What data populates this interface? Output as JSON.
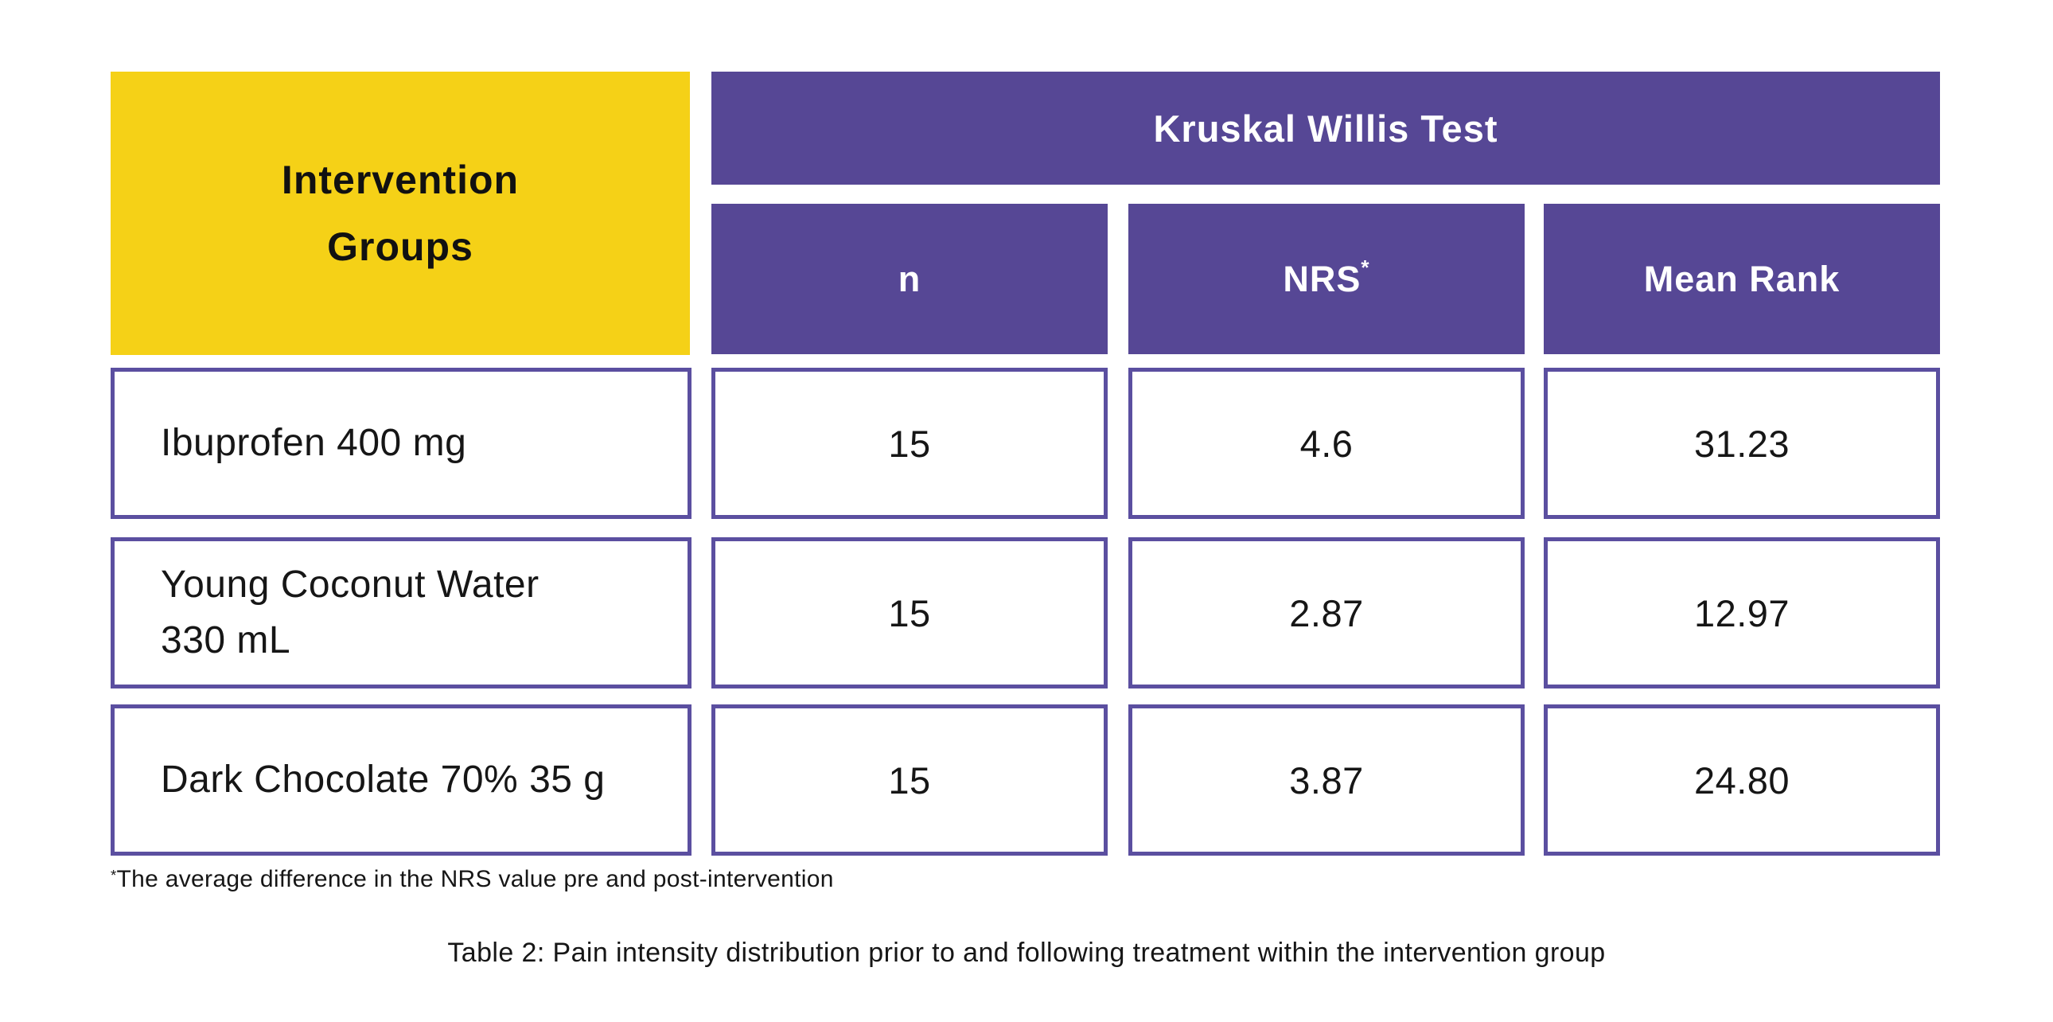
{
  "table": {
    "corner_header": {
      "line1": "Intervention",
      "line2": "Groups"
    },
    "main_header": "Kruskal Willis Test",
    "sub_headers": {
      "n": "n",
      "nrs": "NRS",
      "nrs_sup": "*",
      "mean_rank": "Mean Rank"
    },
    "rows": [
      {
        "lines": [
          "Ibuprofen 400 mg"
        ],
        "n": "15",
        "nrs": "4.6",
        "mean_rank": "31.23"
      },
      {
        "lines": [
          "Young Coconut Water",
          "330 mL"
        ],
        "n": "15",
        "nrs": "2.87",
        "mean_rank": "12.97"
      },
      {
        "lines": [
          "Dark Chocolate 70% 35 g"
        ],
        "n": "15",
        "nrs": "3.87",
        "mean_rank": "24.80"
      }
    ]
  },
  "footnote": {
    "sup": "*",
    "text": "The average difference in the NRS value pre and post-intervention"
  },
  "caption": "Table 2: Pain intensity distribution prior to and following treatment within the intervention group",
  "colors": {
    "yellow": "#F5D117",
    "purple": "#564795",
    "border_purple": "#5B4FA0",
    "text": "#161616"
  }
}
